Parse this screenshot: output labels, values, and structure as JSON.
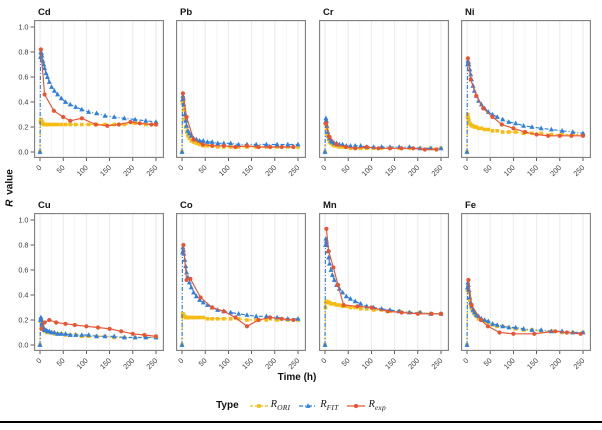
{
  "figure": {
    "y_axis_label_italic": "R",
    "y_axis_label_rest": " value",
    "x_axis_label": "Time (h)",
    "legend": {
      "title": "Type",
      "items": [
        {
          "id": "R_ORI",
          "label_main": "R",
          "label_sub": "ORI",
          "color": "#F7BC13",
          "marker": "square",
          "line": "dashed"
        },
        {
          "id": "R_FIT",
          "label_main": "R",
          "label_sub": "FIT",
          "color": "#2E7FDE",
          "marker": "triangle",
          "line": "dashdot"
        },
        {
          "id": "R_exp",
          "label_main": "R",
          "label_sub": "exp",
          "color": "#E95432",
          "marker": "circle",
          "line": "solid"
        }
      ]
    },
    "colors": {
      "ori": "#F7BC13",
      "fit": "#2E7FDE",
      "exp": "#E95432",
      "grid_major": "#EAEAEA",
      "grid_minor": "#F2F2F2",
      "panel_border": "#7C7C7C",
      "tick_text": "#3A3A3A",
      "rule": "#000000"
    },
    "axes": {
      "x_ticks": [
        0,
        50,
        100,
        150,
        200,
        250
      ],
      "y_ticks": [
        0.0,
        0.2,
        0.4,
        0.6,
        0.8,
        1.0
      ],
      "x_range": [
        0,
        250
      ],
      "y_range": [
        0,
        1
      ],
      "grid_step": 25,
      "x_tick_angle_deg": 45,
      "grid": "vertical-only"
    }
  },
  "chart_data": {
    "type": "line",
    "title": "",
    "xlabel": "Time (h)",
    "ylabel": "R value",
    "xlim": [
      0,
      250
    ],
    "ylim": [
      0,
      1
    ],
    "legend_position": "bottom",
    "series_names": [
      "R_ORI",
      "R_FIT",
      "R_exp"
    ],
    "x_dense": [
      0,
      1,
      2,
      3,
      4,
      6,
      8,
      10,
      13,
      16,
      20,
      25,
      31,
      38,
      46,
      55,
      65,
      77,
      90,
      105,
      122,
      140,
      160,
      182,
      205,
      228,
      250
    ],
    "panels": [
      {
        "title": "Cd",
        "ori_y": [
          0,
          0.24,
          0.26,
          0.25,
          0.24,
          0.23,
          0.22,
          0.22,
          0.22,
          0.22,
          0.22,
          0.22,
          0.22,
          0.22,
          0.22,
          0.22,
          0.22,
          0.22,
          0.22,
          0.22,
          0.22,
          0.22,
          0.22,
          0.22,
          0.23,
          0.22,
          0.22
        ],
        "fit_y": [
          0,
          0.76,
          0.8,
          0.79,
          0.77,
          0.73,
          0.7,
          0.67,
          0.63,
          0.6,
          0.56,
          0.52,
          0.49,
          0.46,
          0.43,
          0.4,
          0.38,
          0.36,
          0.34,
          0.32,
          0.31,
          0.29,
          0.28,
          0.27,
          0.26,
          0.25,
          0.24
        ],
        "exp_x": [
          2,
          10,
          30,
          50,
          65,
          90,
          120,
          145,
          170,
          195,
          215,
          240,
          250
        ],
        "exp_y": [
          0.82,
          0.46,
          0.33,
          0.28,
          0.25,
          0.27,
          0.22,
          0.21,
          0.22,
          0.24,
          0.23,
          0.22,
          0.22
        ]
      },
      {
        "title": "Pb",
        "ori_y": [
          0,
          0.39,
          0.43,
          0.4,
          0.34,
          0.26,
          0.2,
          0.16,
          0.13,
          0.11,
          0.09,
          0.08,
          0.07,
          0.06,
          0.05,
          0.05,
          0.05,
          0.04,
          0.04,
          0.04,
          0.04,
          0.04,
          0.04,
          0.04,
          0.04,
          0.04,
          0.04
        ],
        "fit_y": [
          0,
          0.42,
          0.45,
          0.43,
          0.38,
          0.3,
          0.25,
          0.21,
          0.17,
          0.15,
          0.13,
          0.11,
          0.1,
          0.09,
          0.09,
          0.08,
          0.08,
          0.07,
          0.07,
          0.07,
          0.06,
          0.06,
          0.06,
          0.06,
          0.06,
          0.06,
          0.06
        ],
        "exp_x": [
          2,
          10,
          25,
          45,
          65,
          90,
          115,
          140,
          165,
          190,
          215,
          240
        ],
        "exp_y": [
          0.47,
          0.28,
          0.1,
          0.06,
          0.05,
          0.05,
          0.04,
          0.05,
          0.04,
          0.04,
          0.04,
          0.04
        ]
      },
      {
        "title": "Cr",
        "ori_y": [
          0,
          0.22,
          0.24,
          0.22,
          0.18,
          0.13,
          0.1,
          0.08,
          0.07,
          0.06,
          0.05,
          0.05,
          0.04,
          0.04,
          0.04,
          0.03,
          0.03,
          0.03,
          0.03,
          0.03,
          0.03,
          0.03,
          0.03,
          0.03,
          0.03,
          0.03,
          0.03
        ],
        "fit_y": [
          0,
          0.24,
          0.27,
          0.25,
          0.21,
          0.16,
          0.13,
          0.11,
          0.09,
          0.08,
          0.07,
          0.07,
          0.06,
          0.06,
          0.05,
          0.05,
          0.05,
          0.05,
          0.04,
          0.04,
          0.04,
          0.04,
          0.04,
          0.04,
          0.03,
          0.03,
          0.03
        ],
        "exp_x": [
          2,
          10,
          25,
          45,
          65,
          90,
          115,
          140,
          165,
          190,
          215,
          240
        ],
        "exp_y": [
          0.23,
          0.12,
          0.06,
          0.04,
          0.03,
          0.04,
          0.03,
          0.03,
          0.03,
          0.03,
          0.02,
          0.02
        ]
      },
      {
        "title": "Ni",
        "ori_y": [
          0,
          0.28,
          0.3,
          0.27,
          0.25,
          0.23,
          0.22,
          0.21,
          0.21,
          0.2,
          0.2,
          0.19,
          0.19,
          0.18,
          0.18,
          0.17,
          0.17,
          0.16,
          0.16,
          0.16,
          0.15,
          0.15,
          0.15,
          0.14,
          0.14,
          0.14,
          0.14
        ],
        "fit_y": [
          0,
          0.7,
          0.73,
          0.72,
          0.7,
          0.66,
          0.62,
          0.58,
          0.53,
          0.49,
          0.45,
          0.41,
          0.38,
          0.35,
          0.32,
          0.3,
          0.28,
          0.26,
          0.24,
          0.23,
          0.21,
          0.2,
          0.19,
          0.18,
          0.17,
          0.16,
          0.15
        ],
        "exp_x": [
          2,
          8,
          20,
          35,
          55,
          75,
          100,
          125,
          150,
          175,
          200,
          225,
          250
        ],
        "exp_y": [
          0.75,
          0.58,
          0.45,
          0.35,
          0.28,
          0.22,
          0.19,
          0.16,
          0.14,
          0.13,
          0.13,
          0.13,
          0.13
        ]
      },
      {
        "title": "Cu",
        "ori_y": [
          0,
          0.19,
          0.21,
          0.19,
          0.16,
          0.14,
          0.12,
          0.11,
          0.11,
          0.1,
          0.1,
          0.1,
          0.09,
          0.09,
          0.09,
          0.08,
          0.08,
          0.08,
          0.07,
          0.07,
          0.07,
          0.07,
          0.06,
          0.06,
          0.06,
          0.06,
          0.06
        ],
        "fit_y": [
          0,
          0.2,
          0.22,
          0.2,
          0.17,
          0.15,
          0.13,
          0.12,
          0.12,
          0.11,
          0.11,
          0.1,
          0.1,
          0.09,
          0.09,
          0.09,
          0.08,
          0.08,
          0.08,
          0.08,
          0.07,
          0.07,
          0.07,
          0.06,
          0.06,
          0.06,
          0.06
        ],
        "exp_x": [
          3,
          10,
          20,
          35,
          55,
          75,
          100,
          125,
          150,
          175,
          200,
          225,
          250
        ],
        "exp_y": [
          0.13,
          0.18,
          0.2,
          0.18,
          0.17,
          0.16,
          0.15,
          0.14,
          0.13,
          0.11,
          0.09,
          0.08,
          0.07
        ]
      },
      {
        "title": "Co",
        "ori_y": [
          0,
          0.23,
          0.25,
          0.24,
          0.23,
          0.23,
          0.22,
          0.22,
          0.22,
          0.22,
          0.22,
          0.22,
          0.22,
          0.22,
          0.22,
          0.21,
          0.21,
          0.21,
          0.21,
          0.21,
          0.21,
          0.2,
          0.2,
          0.2,
          0.2,
          0.2,
          0.2
        ],
        "fit_y": [
          0,
          0.74,
          0.78,
          0.76,
          0.73,
          0.68,
          0.63,
          0.58,
          0.54,
          0.5,
          0.46,
          0.42,
          0.39,
          0.36,
          0.34,
          0.32,
          0.3,
          0.28,
          0.27,
          0.26,
          0.25,
          0.24,
          0.23,
          0.23,
          0.22,
          0.21,
          0.21
        ],
        "exp_x": [
          3,
          10,
          18,
          40,
          65,
          90,
          115,
          140,
          165,
          190,
          215,
          240
        ],
        "exp_y": [
          0.8,
          0.52,
          0.53,
          0.38,
          0.3,
          0.27,
          0.22,
          0.15,
          0.2,
          0.22,
          0.21,
          0.2
        ]
      },
      {
        "title": "Mn",
        "ori_y": [
          0,
          0.3,
          0.34,
          0.35,
          0.35,
          0.34,
          0.34,
          0.34,
          0.33,
          0.33,
          0.33,
          0.32,
          0.32,
          0.31,
          0.31,
          0.3,
          0.3,
          0.29,
          0.29,
          0.28,
          0.28,
          0.27,
          0.27,
          0.26,
          0.26,
          0.25,
          0.25
        ],
        "fit_y": [
          0,
          0.8,
          0.85,
          0.83,
          0.8,
          0.75,
          0.7,
          0.65,
          0.6,
          0.56,
          0.52,
          0.48,
          0.45,
          0.42,
          0.39,
          0.37,
          0.35,
          0.33,
          0.31,
          0.3,
          0.29,
          0.28,
          0.27,
          0.26,
          0.26,
          0.25,
          0.25
        ],
        "exp_x": [
          3,
          8,
          18,
          28,
          40,
          70,
          100,
          135,
          165,
          200,
          230,
          250
        ],
        "exp_y": [
          0.93,
          0.75,
          0.62,
          0.48,
          0.32,
          0.31,
          0.3,
          0.27,
          0.26,
          0.25,
          0.25,
          0.25
        ]
      },
      {
        "title": "Fe",
        "ori_y": [
          0,
          0.44,
          0.48,
          0.46,
          0.42,
          0.36,
          0.32,
          0.29,
          0.27,
          0.25,
          0.23,
          0.21,
          0.2,
          0.19,
          0.18,
          0.16,
          0.15,
          0.15,
          0.14,
          0.13,
          0.12,
          0.12,
          0.11,
          0.11,
          0.1,
          0.1,
          0.1
        ],
        "fit_y": [
          0,
          0.46,
          0.5,
          0.48,
          0.44,
          0.38,
          0.34,
          0.31,
          0.28,
          0.26,
          0.24,
          0.23,
          0.21,
          0.2,
          0.19,
          0.17,
          0.16,
          0.15,
          0.14,
          0.14,
          0.13,
          0.12,
          0.12,
          0.11,
          0.11,
          0.1,
          0.1
        ],
        "exp_x": [
          3,
          10,
          30,
          45,
          70,
          100,
          145,
          190,
          215,
          245
        ],
        "exp_y": [
          0.52,
          0.32,
          0.2,
          0.15,
          0.1,
          0.09,
          0.09,
          0.11,
          0.1,
          0.09
        ]
      }
    ]
  }
}
